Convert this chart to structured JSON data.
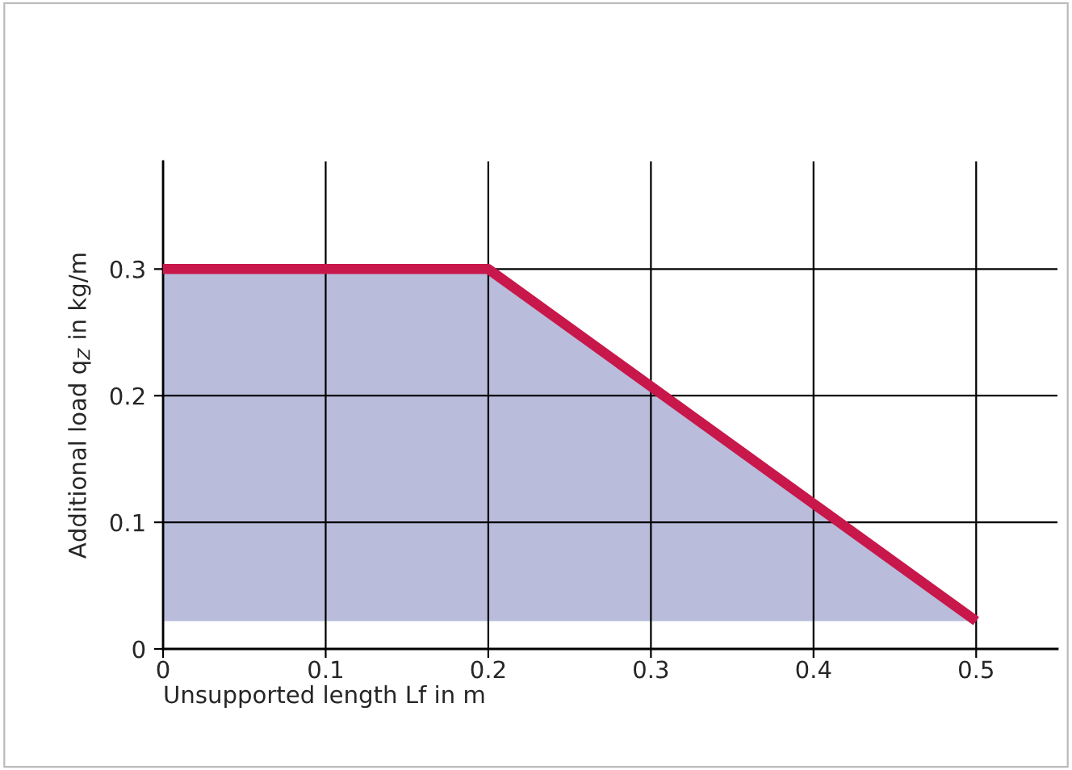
{
  "chart_data": {
    "type": "line",
    "xlabel": "Unsupported length Lf in m",
    "ylabel": "Additional load q$_{Z}$ in kg/m",
    "x": [
      0,
      0.2,
      0.5
    ],
    "series": [
      {
        "color": "#c8174a",
        "values": [
          0.3,
          0.3,
          0.022
        ],
        "lower": [
          0.022,
          0.022,
          0.022
        ],
        "upper": [
          0.3,
          0.3,
          0.022
        ]
      }
    ],
    "xlim": [
      0,
      0.55
    ],
    "ylim": [
      0,
      0.385
    ],
    "xticks": [
      0,
      0.1,
      0.2,
      0.3,
      0.4,
      0.5
    ],
    "yticks": [
      0,
      0.1,
      0.2,
      0.3
    ],
    "grid": true,
    "legend": false
  }
}
